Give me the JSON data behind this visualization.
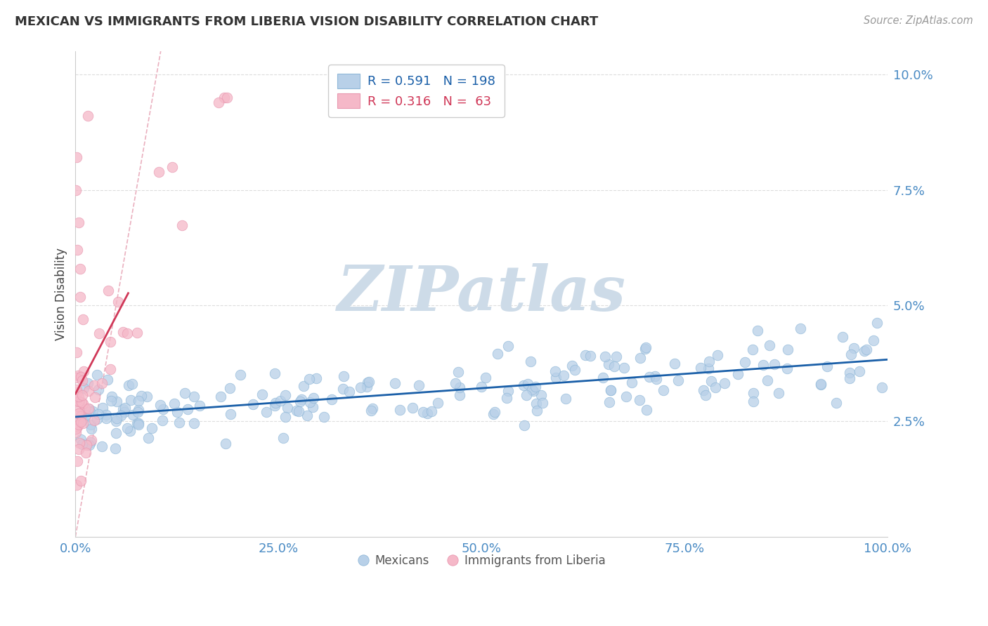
{
  "title": "MEXICAN VS IMMIGRANTS FROM LIBERIA VISION DISABILITY CORRELATION CHART",
  "source": "Source: ZipAtlas.com",
  "ylabel": "Vision Disability",
  "xlim": [
    0,
    1.0
  ],
  "ylim": [
    0.0,
    0.105
  ],
  "yticks": [
    0.025,
    0.05,
    0.075,
    0.1
  ],
  "ytick_labels": [
    "2.5%",
    "5.0%",
    "7.5%",
    "10.0%"
  ],
  "xticks": [
    0.0,
    0.25,
    0.5,
    0.75,
    1.0
  ],
  "xtick_labels": [
    "0.0%",
    "25.0%",
    "50.0%",
    "75.0%",
    "100.0%"
  ],
  "blue_R": 0.591,
  "blue_N": 198,
  "pink_R": 0.316,
  "pink_N": 63,
  "legend_label_blue": "Mexicans",
  "legend_label_pink": "Immigrants from Liberia",
  "blue_color": "#b8d0e8",
  "blue_edge_color": "#90b8d8",
  "blue_line_color": "#1a5fa8",
  "pink_color": "#f5b8c8",
  "pink_edge_color": "#e898b0",
  "pink_line_color": "#d03858",
  "diag_color": "#e8a8b8",
  "background_color": "#ffffff",
  "watermark_color": "#cddbe8",
  "grid_color": "#dddddd",
  "title_color": "#333333",
  "source_color": "#999999",
  "tick_color": "#4a8bc4"
}
